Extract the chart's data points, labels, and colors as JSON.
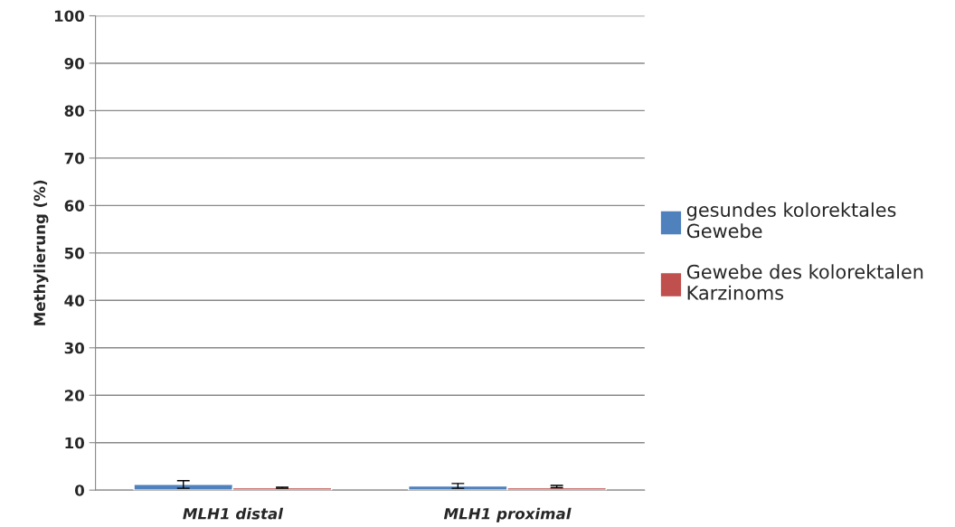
{
  "chart_data": {
    "type": "bar",
    "ylabel": "Methylierung (%)",
    "categories": [
      "MLH1 distal",
      "MLH1 proximal"
    ],
    "series": [
      {
        "name": "gesundes kolorektales\nGewebe",
        "color": "#4f81bd",
        "values": [
          1.2,
          0.9
        ],
        "errors": [
          0.8,
          0.5
        ]
      },
      {
        "name": "Gewebe des kolorektalen\nKarzinoms",
        "color": "#c0504d",
        "values": [
          0.5,
          0.5
        ],
        "errors": [
          0.1,
          [
            0.5,
            1.0
          ]
        ]
      }
    ],
    "ylim": [
      0,
      100
    ],
    "yticks": [
      0,
      10,
      20,
      30,
      40,
      50,
      60,
      70,
      80,
      90,
      100
    ],
    "grid": "y",
    "legend": "right"
  }
}
